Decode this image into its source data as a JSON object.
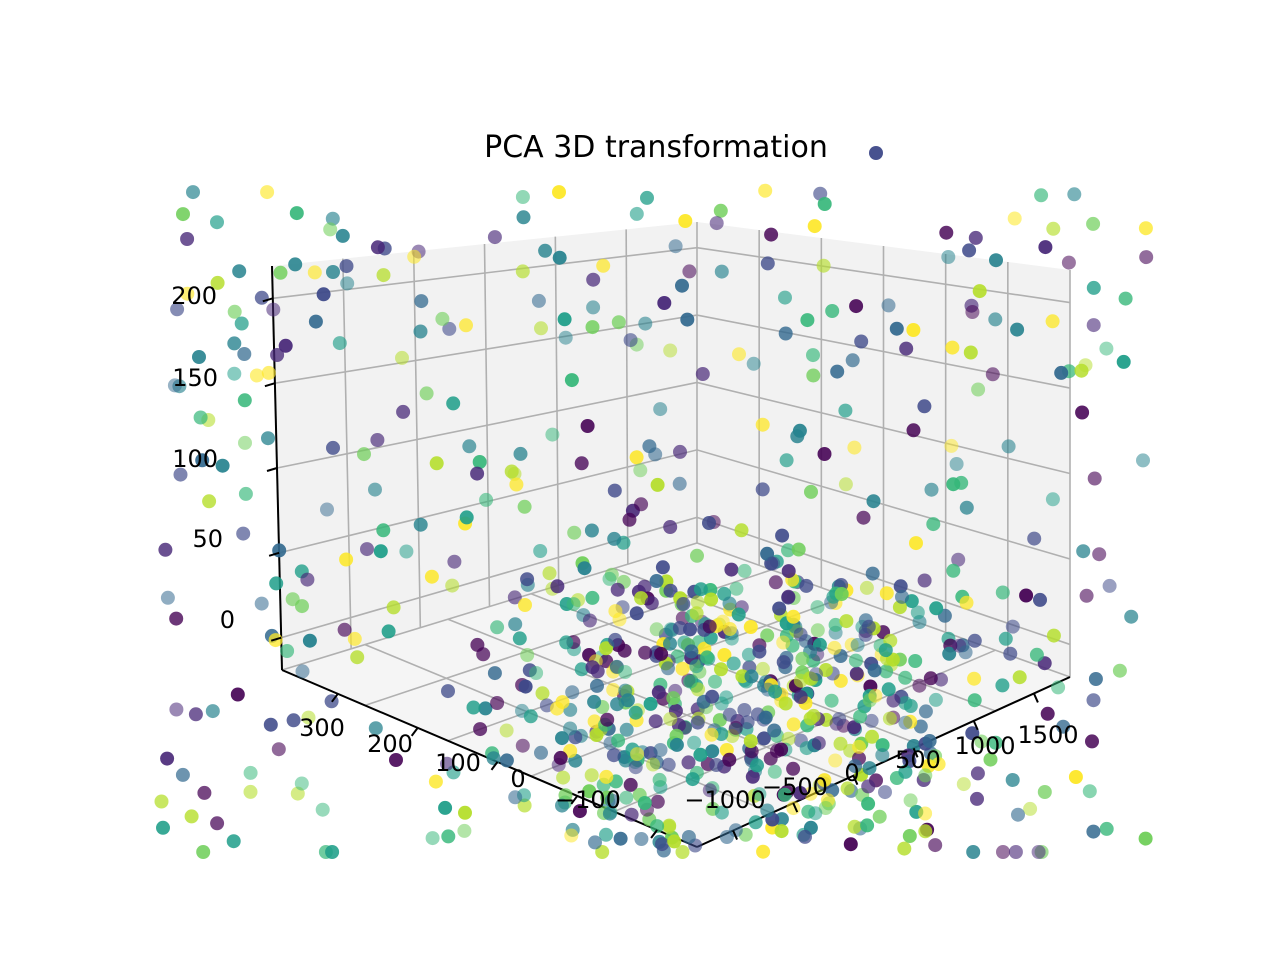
{
  "chart_data": {
    "type": "scatter",
    "projection": "3d",
    "title": "PCA 3D transformation",
    "xlabel": "",
    "ylabel": "",
    "zlabel": "",
    "grid": true,
    "legend": "none",
    "colormap": "viridis",
    "point_alpha": 0.6,
    "axis_ranges": {
      "x": [
        -1500,
        1800
      ],
      "y": [
        -150,
        380
      ],
      "z": [
        -40,
        215
      ]
    },
    "x_ticks": [
      "−1000",
      "−500",
      "0",
      "500",
      "1000",
      "1500"
    ],
    "y_ticks": [
      "−100",
      "0",
      "100",
      "200",
      "300"
    ],
    "z_ticks": [
      "0",
      "50",
      "100",
      "150",
      "200"
    ],
    "colors": {
      "pane": "#f2f2f2",
      "grid": "#b0b0b0",
      "axis": "#000000",
      "viridis": [
        "#440154",
        "#482878",
        "#3e4989",
        "#31688e",
        "#26828e",
        "#1f9e89",
        "#35b779",
        "#6ece58",
        "#b5de2b",
        "#fde725"
      ]
    },
    "sample_count": 900
  }
}
